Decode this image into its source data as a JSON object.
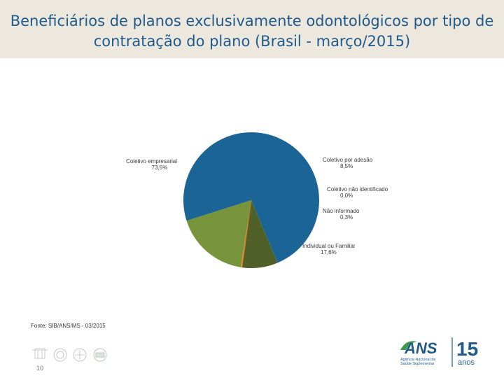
{
  "header": {
    "title_line1": "Beneficiários de planos exclusivamente odontológicos por tipo de",
    "title_line2": "contratação do plano (Brasil - março/2015)"
  },
  "chart_data": {
    "type": "pie",
    "title": "Beneficiários de planos exclusivamente odontológicos por tipo de contratação do plano (Brasil - março/2015)",
    "slices": [
      {
        "name": "Coletivo empresarial",
        "value": 73.5,
        "label": "73,5%",
        "color": "#1b6596"
      },
      {
        "name": "Coletivo por adesão",
        "value": 8.5,
        "label": "8,5%",
        "color": "#4f6128"
      },
      {
        "name": "Coletivo não identificado",
        "value": 0.0,
        "label": "0,0%",
        "color": "#cc6a1f"
      },
      {
        "name": "Não informado",
        "value": 0.3,
        "label": "0,3%",
        "color": "#e58a2c"
      },
      {
        "name": "Individual ou Familiar",
        "value": 17.6,
        "label": "17,6%",
        "color": "#77933c"
      }
    ]
  },
  "footer": {
    "source": "Fonte: SIB/ANS/MS - 03/2015",
    "page_number": "10",
    "logo_text": "ANS",
    "logo_subtitle_1": "Agência Nacional de",
    "logo_subtitle_2": "Saúde Suplementar",
    "anniversary_number": "15",
    "anniversary_word": "anos"
  },
  "colors": {
    "title": "#1f5a8c",
    "title_band": "#ede8de",
    "logo_blue": "#1f5a8c",
    "logo_green": "#3e9a4a"
  }
}
